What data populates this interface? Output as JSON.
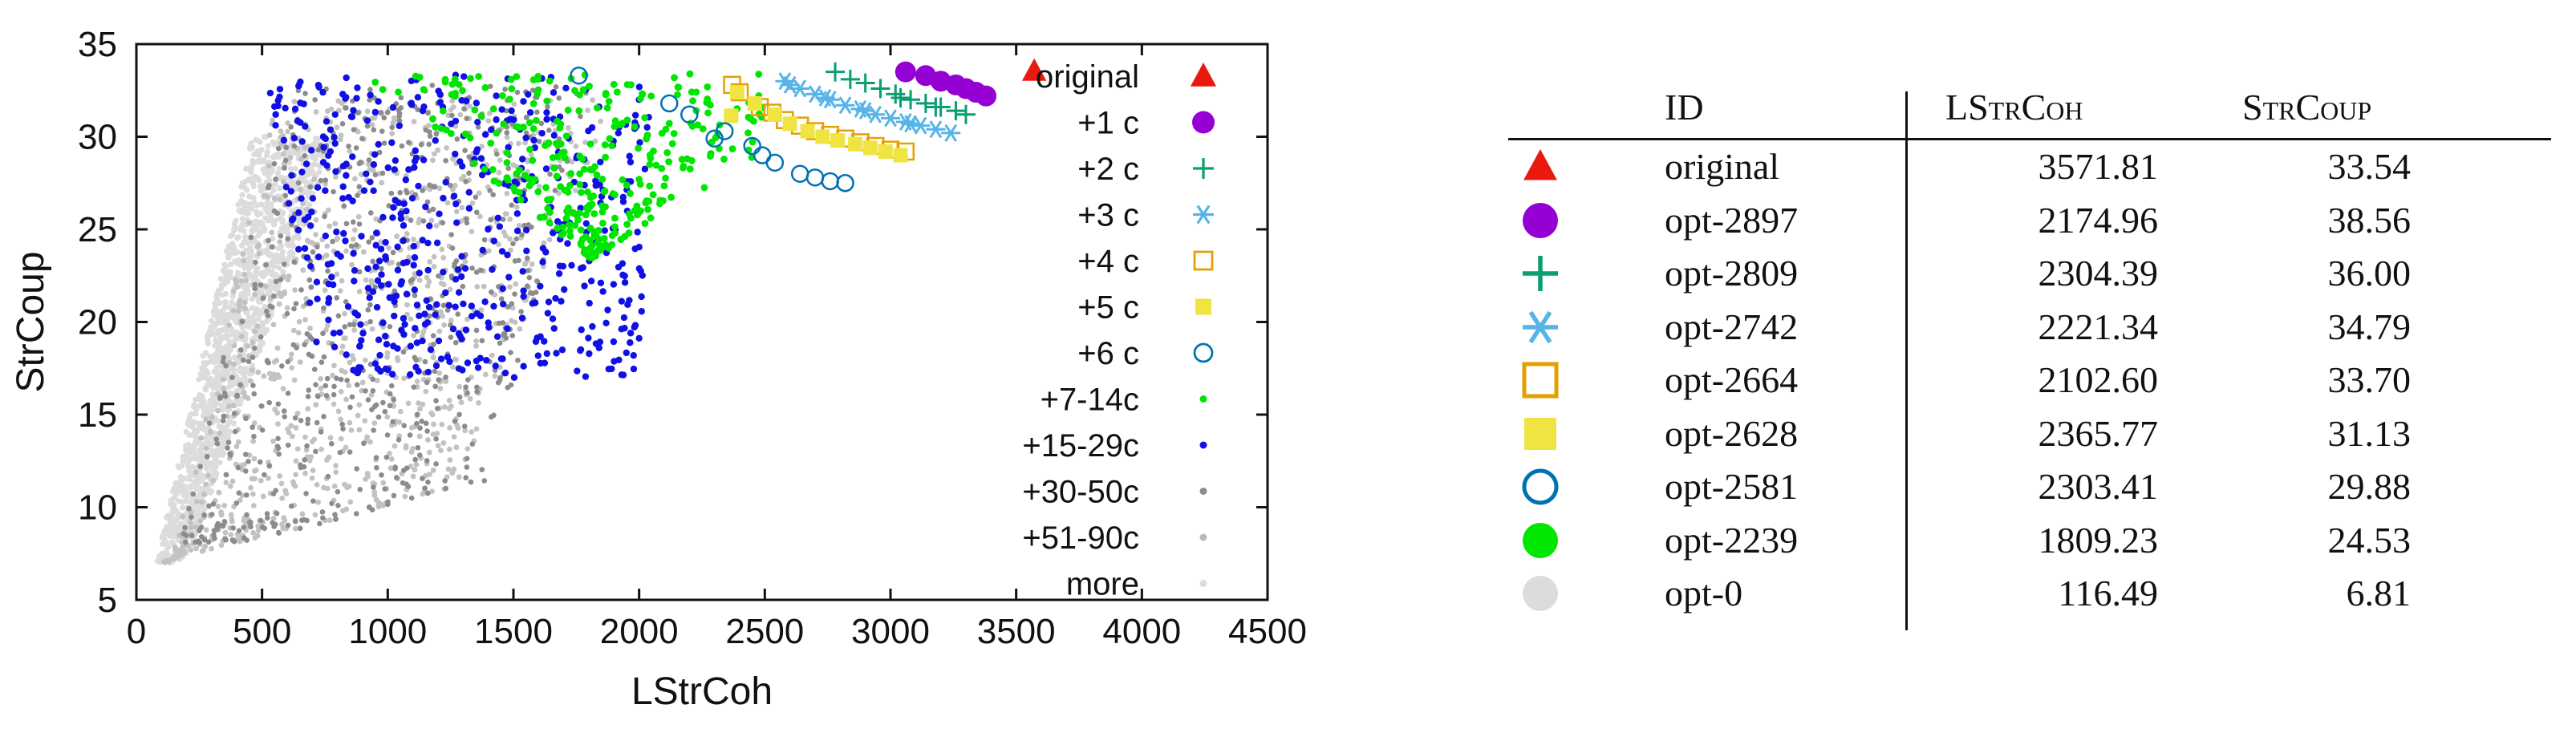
{
  "chart_data": {
    "type": "scatter",
    "xlabel": "LStrCoh",
    "ylabel": "StrCoup",
    "xlim": [
      0,
      4500
    ],
    "ylim": [
      5,
      35
    ],
    "xticks": [
      "0",
      "500",
      "1000",
      "1500",
      "2000",
      "2500",
      "3000",
      "3500",
      "4000",
      "4500"
    ],
    "yticks": [
      "5",
      "10",
      "15",
      "20",
      "25",
      "30",
      "35"
    ],
    "legend_position": "right, inside plot",
    "grid": false,
    "series": [
      {
        "name": "original",
        "marker": "filled-triangle",
        "color": "#e8190f",
        "points": [
          [
            3571.81,
            33.54
          ]
        ]
      },
      {
        "name": "+1 c",
        "marker": "filled-circle",
        "color": "#9500d3",
        "points": [
          [
            3060,
            33.5
          ],
          [
            3140,
            33.3
          ],
          [
            3200,
            33.0
          ],
          [
            3260,
            32.8
          ],
          [
            3300,
            32.6
          ],
          [
            3340,
            32.4
          ],
          [
            3380,
            32.2
          ]
        ]
      },
      {
        "name": "+2 c",
        "marker": "plus",
        "color": "#0a9e73",
        "points": [
          [
            2780,
            33.5
          ],
          [
            2900,
            32.9
          ],
          [
            2960,
            32.6
          ],
          [
            3020,
            32.3
          ],
          [
            3080,
            32.0
          ],
          [
            3140,
            31.8
          ],
          [
            3200,
            31.6
          ],
          [
            3260,
            31.4
          ],
          [
            3300,
            31.2
          ],
          [
            2840,
            33.1
          ],
          [
            3040,
            32.1
          ],
          [
            3180,
            31.6
          ]
        ]
      },
      {
        "name": "+3 c",
        "marker": "asterisk",
        "color": "#56b4e9",
        "points": [
          [
            2580,
            33.0
          ],
          [
            2640,
            32.6
          ],
          [
            2700,
            32.3
          ],
          [
            2760,
            32.0
          ],
          [
            2820,
            31.7
          ],
          [
            2880,
            31.5
          ],
          [
            2940,
            31.2
          ],
          [
            3000,
            31.0
          ],
          [
            3060,
            30.8
          ],
          [
            3120,
            30.6
          ],
          [
            3180,
            30.4
          ],
          [
            3240,
            30.2
          ],
          [
            2600,
            32.8
          ],
          [
            2740,
            32.1
          ],
          [
            2900,
            31.4
          ],
          [
            3080,
            30.7
          ]
        ]
      },
      {
        "name": "+4 c",
        "marker": "open-square",
        "color": "#e69f00",
        "points": [
          [
            2370,
            32.8
          ],
          [
            2400,
            32.4
          ],
          [
            2480,
            31.6
          ],
          [
            2530,
            31.3
          ],
          [
            2580,
            30.9
          ],
          [
            2640,
            30.6
          ],
          [
            2700,
            30.3
          ],
          [
            2760,
            30.1
          ],
          [
            2820,
            29.9
          ],
          [
            2880,
            29.7
          ],
          [
            2940,
            29.5
          ],
          [
            3000,
            29.3
          ],
          [
            3060,
            29.2
          ]
        ]
      },
      {
        "name": "+5 c",
        "marker": "filled-square",
        "color": "#f0e442",
        "points": [
          [
            2390,
            32.4
          ],
          [
            2460,
            31.8
          ],
          [
            2540,
            31.2
          ],
          [
            2600,
            30.7
          ],
          [
            2670,
            30.3
          ],
          [
            2730,
            30.0
          ],
          [
            2790,
            29.8
          ],
          [
            2860,
            29.6
          ],
          [
            2920,
            29.4
          ],
          [
            2980,
            29.2
          ],
          [
            3040,
            29.0
          ],
          [
            2365.77,
            31.13
          ]
        ]
      },
      {
        "name": "+6 c",
        "marker": "open-circle",
        "color": "#0072b2",
        "points": [
          [
            1760,
            33.3
          ],
          [
            2120,
            31.8
          ],
          [
            2200,
            31.2
          ],
          [
            2300,
            29.9
          ],
          [
            2450,
            29.5
          ],
          [
            2490,
            29.0
          ],
          [
            2540,
            28.6
          ],
          [
            2640,
            28.0
          ],
          [
            2700,
            27.8
          ],
          [
            2760,
            27.6
          ],
          [
            2820,
            27.5
          ],
          [
            2340,
            30.3
          ]
        ]
      },
      {
        "name": "+7-14c",
        "marker": "dot",
        "color": "#00e600",
        "cloud": "green"
      },
      {
        "name": "+15-29c",
        "marker": "dot",
        "color": "#1010e6",
        "cloud": "blue"
      },
      {
        "name": "+30-50c",
        "marker": "dot",
        "color": "#8c8c8c",
        "cloud": "darkgray"
      },
      {
        "name": "+51-90c",
        "marker": "dot",
        "color": "#b9b9b9",
        "cloud": "midgray"
      },
      {
        "name": "more",
        "marker": "dot",
        "color": "#dcdcdc",
        "cloud": "lightgray"
      }
    ]
  },
  "table": {
    "headers": {
      "id": "ID",
      "lstrcoh": "LStrCoh",
      "strcoup": "StrCoup"
    },
    "rows": [
      {
        "marker": "filled-triangle",
        "color": "#e8190f",
        "id": "original",
        "lstrcoh": "3571.81",
        "strcoup": "33.54"
      },
      {
        "marker": "filled-circle",
        "color": "#9500d3",
        "id": "opt-2897",
        "lstrcoh": "2174.96",
        "strcoup": "38.56"
      },
      {
        "marker": "plus",
        "color": "#0a9e73",
        "id": "opt-2809",
        "lstrcoh": "2304.39",
        "strcoup": "36.00"
      },
      {
        "marker": "asterisk",
        "color": "#56b4e9",
        "id": "opt-2742",
        "lstrcoh": "2221.34",
        "strcoup": "34.79"
      },
      {
        "marker": "open-square",
        "color": "#e69f00",
        "id": "opt-2664",
        "lstrcoh": "2102.60",
        "strcoup": "33.70"
      },
      {
        "marker": "filled-square",
        "color": "#f0e442",
        "id": "opt-2628",
        "lstrcoh": "2365.77",
        "strcoup": "31.13"
      },
      {
        "marker": "open-circle",
        "color": "#0072b2",
        "id": "opt-2581",
        "lstrcoh": "2303.41",
        "strcoup": "29.88"
      },
      {
        "marker": "filled-circle",
        "color": "#00e600",
        "id": "opt-2239",
        "lstrcoh": "1809.23",
        "strcoup": "24.53"
      },
      {
        "marker": "filled-circle",
        "color": "#dcdcdc",
        "id": "opt-0",
        "lstrcoh": "116.49",
        "strcoup": "6.81"
      }
    ]
  }
}
